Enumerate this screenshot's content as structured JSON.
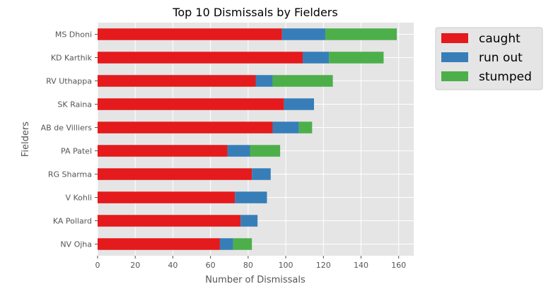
{
  "chart_data": {
    "type": "bar",
    "orientation": "horizontal",
    "stacked": true,
    "title": "Top 10 Dismissals by Fielders",
    "xlabel": "Number of Dismissals",
    "ylabel": "Fielders",
    "xlim": [
      0,
      168
    ],
    "xticks": [
      0,
      20,
      40,
      60,
      80,
      100,
      120,
      140,
      160
    ],
    "grid": true,
    "legend_position": "outside-right",
    "categories": [
      "MS Dhoni",
      "KD Karthik",
      "RV Uthappa",
      "SK Raina",
      "AB de Villiers",
      "PA Patel",
      "RG Sharma",
      "V Kohli",
      "KA Pollard",
      "NV Ojha"
    ],
    "series": [
      {
        "name": "caught",
        "color": "#e41a1c",
        "values": [
          98,
          109,
          84,
          99,
          93,
          69,
          82,
          73,
          76,
          65
        ]
      },
      {
        "name": "run out",
        "color": "#377eb8",
        "values": [
          23,
          14,
          9,
          16,
          14,
          12,
          10,
          17,
          9,
          7
        ]
      },
      {
        "name": "stumped",
        "color": "#4daf4a",
        "values": [
          38,
          29,
          32,
          0,
          7,
          16,
          0,
          0,
          0,
          10
        ]
      }
    ]
  }
}
